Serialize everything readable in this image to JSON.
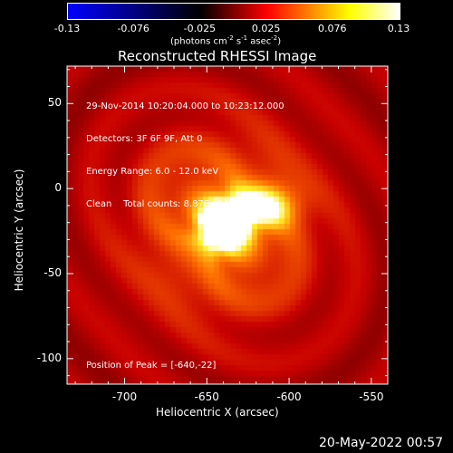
{
  "colorbar": {
    "range": [
      -0.13,
      0.13
    ],
    "ticks": [
      "-0.13",
      "-0.076",
      "-0.025",
      "0.025",
      "0.076",
      "0.13"
    ],
    "units_text": "(photons cm",
    "units_sup1": "-2",
    "units_mid1": " s",
    "units_sup2": "-1",
    "units_mid2": " asec",
    "units_sup3": "-2",
    "units_end": ")",
    "colors": [
      "#0000ff",
      "#000000",
      "#ff0000",
      "#ffff00",
      "#ffffff"
    ]
  },
  "chart_data": {
    "type": "heatmap",
    "title": "Reconstructed RHESSI Image",
    "xlabel": "Heliocentric X (arcsec)",
    "ylabel": "Heliocentric Y (arcsec)",
    "xlim": [
      -735,
      -540
    ],
    "ylim": [
      -115,
      72
    ],
    "x_ticks": [
      -700,
      -650,
      -600,
      -550
    ],
    "y_ticks": [
      50,
      0,
      -50,
      -100
    ],
    "peak": [
      -640,
      -22
    ],
    "colormap": "rhessi-hot"
  },
  "annotations": {
    "line1": "29-Nov-2014 10:20:04.000 to 10:23:12.000",
    "line2": "Detectors: 3F 6F 9F, Att 0",
    "line3": "Energy Range: 6.0 - 12.0 keV",
    "line4": "Clean    Total counts: 8.87E+04",
    "peak_text": "Position of Peak = [-640,-22]"
  },
  "footer": {
    "timestamp": "20-May-2022 00:57"
  }
}
